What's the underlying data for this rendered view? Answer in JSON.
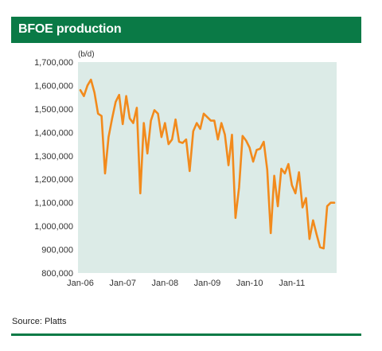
{
  "header": {
    "title": "BFOE production"
  },
  "source": "Source: Platts",
  "colors": {
    "brand_green": "#0a7a46",
    "plot_bg": "#dcebe7",
    "line": "#f28a1c"
  },
  "chart_data": {
    "type": "line",
    "title": "BFOE production",
    "unit_label": "(b/d)",
    "xlabel": "",
    "ylabel": "",
    "ylim": [
      800000,
      1700000
    ],
    "yticks": [
      800000,
      900000,
      1000000,
      1100000,
      1200000,
      1300000,
      1400000,
      1500000,
      1600000,
      1700000
    ],
    "ytick_labels": [
      "800,000",
      "900,000",
      "1,000,000",
      "1,100,000",
      "1,200,000",
      "1,300,000",
      "1,400,000",
      "1,500,000",
      "1,600,000",
      "1,700,000"
    ],
    "xtick_labels": [
      "Jan-06",
      "Jan-07",
      "Jan-08",
      "Jan-09",
      "Jan-10",
      "Jan-11"
    ],
    "xtick_month_index": [
      0,
      12,
      24,
      36,
      48,
      60
    ],
    "grid": false,
    "series": [
      {
        "values": [
          1580000,
          1555000,
          1600000,
          1625000,
          1570000,
          1480000,
          1470000,
          1225000,
          1380000,
          1460000,
          1530000,
          1560000,
          1435000,
          1555000,
          1460000,
          1440000,
          1505000,
          1140000,
          1440000,
          1310000,
          1450000,
          1495000,
          1480000,
          1380000,
          1440000,
          1350000,
          1370000,
          1455000,
          1360000,
          1355000,
          1370000,
          1235000,
          1405000,
          1440000,
          1415000,
          1480000,
          1465000,
          1450000,
          1450000,
          1370000,
          1440000,
          1390000,
          1260000,
          1390000,
          1035000,
          1165000,
          1385000,
          1365000,
          1335000,
          1275000,
          1325000,
          1330000,
          1360000,
          1240000,
          970000,
          1215000,
          1085000,
          1245000,
          1225000,
          1265000,
          1175000,
          1140000,
          1230000,
          1080000,
          1120000,
          945000,
          1025000,
          965000,
          910000,
          905000,
          1085000,
          1100000,
          1100000
        ]
      }
    ]
  }
}
